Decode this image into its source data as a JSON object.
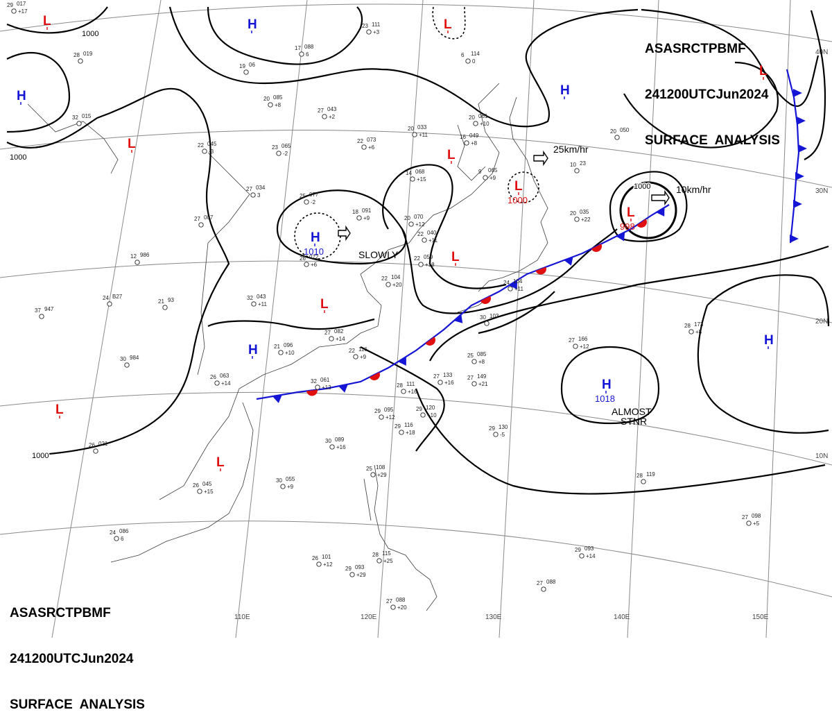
{
  "header": {
    "agency": "ASAS",
    "station": "RCTP",
    "office": "BMF",
    "valid_time": "241200UTC",
    "month": "Jun",
    "year": "2024",
    "product": "SURFACE  ANALYSIS"
  },
  "grid": {
    "lat_labels": [
      "40N",
      "30N",
      "20N",
      "10N"
    ],
    "lon_labels": [
      "110E",
      "120E",
      "130E",
      "140E",
      "150E"
    ]
  },
  "isobar_labels": [
    "1000",
    "1000",
    "1000",
    "1000"
  ],
  "pressure_centers": [
    {
      "type": "H",
      "value": "",
      "color": "#1515d6"
    },
    {
      "type": "H",
      "value": "",
      "color": "#1515d6"
    },
    {
      "type": "H",
      "value": "",
      "color": "#1515d6"
    },
    {
      "type": "H",
      "value": "1010",
      "color": "#1515d6"
    },
    {
      "type": "H",
      "value": "",
      "color": "#1515d6"
    },
    {
      "type": "H",
      "value": "1018",
      "color": "#1515d6"
    },
    {
      "type": "H",
      "value": "",
      "color": "#1515d6"
    },
    {
      "type": "L",
      "value": "",
      "color": "#e01010"
    },
    {
      "type": "L",
      "value": "",
      "color": "#e01010"
    },
    {
      "type": "L",
      "value": "",
      "color": "#e01010"
    },
    {
      "type": "L",
      "value": "1000",
      "color": "#e01010"
    },
    {
      "type": "L",
      "value": "998",
      "color": "#e01010"
    },
    {
      "type": "L",
      "value": "",
      "color": "#e01010"
    },
    {
      "type": "L",
      "value": "",
      "color": "#e01010"
    },
    {
      "type": "L",
      "value": "",
      "color": "#e01010"
    },
    {
      "type": "L",
      "value": "",
      "color": "#e01010"
    },
    {
      "type": "L",
      "value": "",
      "color": "#e01010"
    },
    {
      "type": "L",
      "value": "",
      "color": "#e01010"
    }
  ],
  "motions": [
    {
      "text": "SLOWLY"
    },
    {
      "text": "25km/hr"
    },
    {
      "text": "10km/hr"
    },
    {
      "text": "ALMOST"
    },
    {
      "text": "STNR"
    }
  ],
  "stations": [
    {
      "t": "23",
      "p": "111",
      "d": "+3"
    },
    {
      "t": "17",
      "p": "088",
      "d": "6"
    },
    {
      "t": "19",
      "p": "06",
      "d": ""
    },
    {
      "t": "20",
      "p": "085",
      "d": "+8"
    },
    {
      "t": "27",
      "p": "043",
      "d": "+2"
    },
    {
      "t": "22",
      "p": "073",
      "d": "+6"
    },
    {
      "t": "20",
      "p": "033",
      "d": "+11"
    },
    {
      "t": "16",
      "p": "049",
      "d": "+8"
    },
    {
      "t": "20",
      "p": "061",
      "d": "+10"
    },
    {
      "t": "9",
      "p": "065",
      "d": "+9"
    },
    {
      "t": "23",
      "p": "065",
      "d": "-2"
    },
    {
      "t": "27",
      "p": "034",
      "d": "3"
    },
    {
      "t": "25",
      "p": "077",
      "d": "-2"
    },
    {
      "t": "18",
      "p": "091",
      "d": "+9"
    },
    {
      "t": "20",
      "p": "070",
      "d": "+12"
    },
    {
      "t": "14",
      "p": "068",
      "d": "+15"
    },
    {
      "t": "22",
      "p": "040",
      "d": "+11"
    },
    {
      "t": "22",
      "p": "059",
      "d": "+18"
    },
    {
      "t": "27",
      "p": "007",
      "d": ""
    },
    {
      "t": "12",
      "p": "986",
      "d": ""
    },
    {
      "t": "24",
      "p": "B27",
      "d": ""
    },
    {
      "t": "21",
      "p": "93",
      "d": ""
    },
    {
      "t": "37",
      "p": "947",
      "d": ""
    },
    {
      "t": "32",
      "p": "043",
      "d": "+11"
    },
    {
      "t": "27",
      "p": "082",
      "d": "+14"
    },
    {
      "t": "21",
      "p": "096",
      "d": "+10"
    },
    {
      "t": "22",
      "p": "116",
      "d": "+9"
    },
    {
      "t": "30",
      "p": "984",
      "d": ""
    },
    {
      "t": "32",
      "p": "061",
      "d": "+13"
    },
    {
      "t": "26",
      "p": "063",
      "d": "+14"
    },
    {
      "t": "28",
      "p": "111",
      "d": "+16"
    },
    {
      "t": "29",
      "p": "095",
      "d": "+12"
    },
    {
      "t": "29",
      "p": "120",
      "d": "+10"
    },
    {
      "t": "29",
      "p": "116",
      "d": "+18"
    },
    {
      "t": "27",
      "p": "133",
      "d": "+16"
    },
    {
      "t": "27",
      "p": "149",
      "d": "+21"
    },
    {
      "t": "29",
      "p": "130",
      "d": "-5"
    },
    {
      "t": "26",
      "p": "045",
      "d": "+15"
    },
    {
      "t": "30",
      "p": "055",
      "d": "+9"
    },
    {
      "t": "30",
      "p": "089",
      "d": "+16"
    },
    {
      "t": "26",
      "p": "021",
      "d": ""
    },
    {
      "t": "24",
      "p": "086",
      "d": "6"
    },
    {
      "t": "26",
      "p": "101",
      "d": "+12"
    },
    {
      "t": "29",
      "p": "093",
      "d": "+29"
    },
    {
      "t": "25",
      "p": "108",
      "d": "+29"
    },
    {
      "t": "28",
      "p": "115",
      "d": "+25"
    },
    {
      "t": "27",
      "p": "088",
      "d": "+20"
    },
    {
      "t": "28",
      "p": "119",
      "d": ""
    },
    {
      "t": "27",
      "p": "098",
      "d": "+5"
    },
    {
      "t": "29",
      "p": "093",
      "d": "+14"
    },
    {
      "t": "27",
      "p": "088",
      "d": ""
    },
    {
      "t": "27",
      "p": "166",
      "d": "+12"
    },
    {
      "t": "28",
      "p": "173",
      "d": "+8"
    },
    {
      "t": "20",
      "p": "035",
      "d": "+22"
    },
    {
      "t": "20",
      "p": "050",
      "d": ""
    },
    {
      "t": "10",
      "p": "23",
      "d": ""
    },
    {
      "t": "6",
      "p": "114",
      "d": "0"
    },
    {
      "t": "32",
      "p": "015",
      "d": ""
    },
    {
      "t": "22",
      "p": "045",
      "d": "-3"
    },
    {
      "t": "28",
      "p": "019",
      "d": ""
    },
    {
      "t": "26",
      "p": "072",
      "d": "+6"
    },
    {
      "t": "22",
      "p": "104",
      "d": "+20"
    },
    {
      "t": "30",
      "p": "103",
      "d": ""
    },
    {
      "t": "24",
      "p": "104",
      "d": "+11"
    },
    {
      "t": "25",
      "p": "085",
      "d": "+8"
    },
    {
      "t": "29",
      "p": "017",
      "d": "+17"
    }
  ],
  "colors": {
    "cold_front": "#1515d6",
    "warm_front": "#e01010",
    "high_center": "#1515d6",
    "low_center": "#e01010",
    "isobar": "#000000",
    "graticule": "#8a8a8a",
    "coastline": "#3a3a3a"
  }
}
